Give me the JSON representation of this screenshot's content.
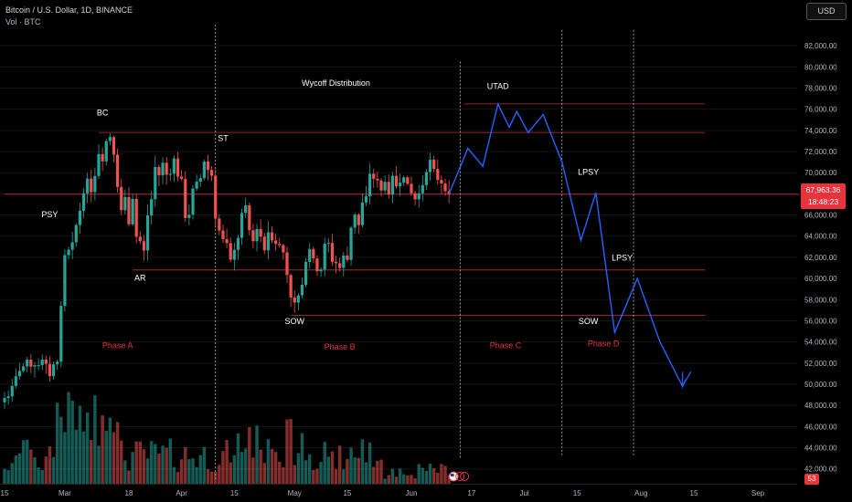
{
  "header": {
    "title": "Bitcoin / U.S. Dollar, 1D, BINANCE",
    "volume_label": "Vol · BTC",
    "currency_button": "USD"
  },
  "price_tag": {
    "price": "67,963.36",
    "countdown": "18:48:23"
  },
  "volume_tag": "53",
  "colors": {
    "up": "#26a69a",
    "down": "#ef5350",
    "projection": "#2962ff",
    "phase": "#e8323c",
    "level_line": "#c0303a"
  },
  "chart_data": {
    "type": "candlestick",
    "title": "Wycoff Distribution",
    "ylim": [
      41000,
      84000
    ],
    "y_ticks": [
      {
        "value": 42000,
        "label": "42,000.00"
      },
      {
        "value": 44000,
        "label": "44,000.00"
      },
      {
        "value": 46000,
        "label": "46,000.00"
      },
      {
        "value": 48000,
        "label": "48,000.00"
      },
      {
        "value": 50000,
        "label": "50,000.00"
      },
      {
        "value": 52000,
        "label": "52,000.00"
      },
      {
        "value": 54000,
        "label": "54,000.00"
      },
      {
        "value": 56000,
        "label": "56,000.00"
      },
      {
        "value": 58000,
        "label": "58,000.00"
      },
      {
        "value": 60000,
        "label": "60,000.00"
      },
      {
        "value": 62000,
        "label": "62,000.00"
      },
      {
        "value": 64000,
        "label": "64,000.00"
      },
      {
        "value": 66000,
        "label": "66,000.00"
      },
      {
        "value": 68000,
        "label": "68,000.00"
      },
      {
        "value": 70000,
        "label": "70,000.00"
      },
      {
        "value": 72000,
        "label": "72,000.00"
      },
      {
        "value": 74000,
        "label": "74,000.00"
      },
      {
        "value": 76000,
        "label": "76,000.00"
      },
      {
        "value": 78000,
        "label": "78,000.00"
      },
      {
        "value": 80000,
        "label": "80,000.00"
      },
      {
        "value": 82000,
        "label": "82,000.00"
      }
    ],
    "x_ticks": [
      {
        "day": 0,
        "label": "15"
      },
      {
        "day": 16,
        "label": "Mar"
      },
      {
        "day": 33,
        "label": "18"
      },
      {
        "day": 47,
        "label": "Apr"
      },
      {
        "day": 61,
        "label": "15"
      },
      {
        "day": 77,
        "label": "May"
      },
      {
        "day": 91,
        "label": "15"
      },
      {
        "day": 108,
        "label": "Jun"
      },
      {
        "day": 124,
        "label": "17"
      },
      {
        "day": 138,
        "label": "Jul"
      },
      {
        "day": 152,
        "label": "15"
      },
      {
        "day": 169,
        "label": "Aug"
      },
      {
        "day": 183,
        "label": "15"
      },
      {
        "day": 200,
        "label": "Sep"
      }
    ],
    "close_path": [
      [
        0,
        48700
      ],
      [
        2,
        49500
      ],
      [
        4,
        51500
      ],
      [
        6,
        51900
      ],
      [
        8,
        52000
      ],
      [
        10,
        52100
      ],
      [
        12,
        51000
      ],
      [
        14,
        52500
      ],
      [
        15,
        57000
      ],
      [
        16,
        61900
      ],
      [
        17,
        62500
      ],
      [
        18,
        63000
      ],
      [
        19,
        65000
      ],
      [
        20,
        66500
      ],
      [
        21,
        68500
      ],
      [
        22,
        69000
      ],
      [
        23,
        68500
      ],
      [
        24,
        70000
      ],
      [
        25,
        72000
      ],
      [
        26,
        71500
      ],
      [
        27,
        73000
      ],
      [
        28,
        73500
      ],
      [
        29,
        72000
      ],
      [
        30,
        69000
      ],
      [
        31,
        66500
      ],
      [
        32,
        67500
      ],
      [
        33,
        65500
      ],
      [
        34,
        67800
      ],
      [
        35,
        64000
      ],
      [
        36,
        63500
      ],
      [
        37,
        62500
      ],
      [
        38,
        66000
      ],
      [
        39,
        67500
      ],
      [
        40,
        70500
      ],
      [
        41,
        69800
      ],
      [
        42,
        70800
      ],
      [
        43,
        69800
      ],
      [
        44,
        70300
      ],
      [
        45,
        71200
      ],
      [
        46,
        69900
      ],
      [
        47,
        69000
      ],
      [
        48,
        66000
      ],
      [
        49,
        66200
      ],
      [
        50,
        68200
      ],
      [
        51,
        68800
      ],
      [
        52,
        69500
      ],
      [
        53,
        71200
      ],
      [
        54,
        70300
      ],
      [
        55,
        69800
      ],
      [
        56,
        66000
      ],
      [
        57,
        64500
      ],
      [
        58,
        63500
      ],
      [
        59,
        63000
      ],
      [
        60,
        61500
      ],
      [
        61,
        62500
      ],
      [
        62,
        64000
      ],
      [
        63,
        66000
      ],
      [
        64,
        66500
      ],
      [
        65,
        64500
      ],
      [
        66,
        63500
      ],
      [
        67,
        65000
      ],
      [
        68,
        64000
      ],
      [
        69,
        62800
      ],
      [
        70,
        64500
      ],
      [
        71,
        64000
      ],
      [
        72,
        63500
      ],
      [
        73,
        63000
      ],
      [
        74,
        62500
      ],
      [
        75,
        60500
      ],
      [
        76,
        58500
      ],
      [
        77,
        57500
      ],
      [
        78,
        58300
      ],
      [
        79,
        59000
      ],
      [
        80,
        62000
      ],
      [
        81,
        63000
      ],
      [
        82,
        61500
      ],
      [
        83,
        61000
      ],
      [
        84,
        61000
      ],
      [
        85,
        63000
      ],
      [
        86,
        63200
      ],
      [
        87,
        61800
      ],
      [
        88,
        61500
      ],
      [
        89,
        61000
      ],
      [
        90,
        62000
      ],
      [
        91,
        61800
      ],
      [
        92,
        65000
      ],
      [
        93,
        66200
      ],
      [
        94,
        65000
      ],
      [
        95,
        67000
      ],
      [
        96,
        67500
      ],
      [
        97,
        70000
      ],
      [
        98,
        69500
      ],
      [
        99,
        69000
      ],
      [
        100,
        68200
      ],
      [
        101,
        69500
      ],
      [
        102,
        67500
      ],
      [
        103,
        69300
      ],
      [
        104,
        68800
      ],
      [
        105,
        69500
      ],
      [
        106,
        70000
      ],
      [
        107,
        68500
      ],
      [
        108,
        68000
      ],
      [
        109,
        67500
      ],
      [
        110,
        68000
      ],
      [
        111,
        69000
      ],
      [
        112,
        70500
      ],
      [
        113,
        71000
      ],
      [
        114,
        70000
      ],
      [
        115,
        69500
      ],
      [
        116,
        69200
      ],
      [
        117,
        68700
      ],
      [
        118,
        67963
      ]
    ],
    "projection": [
      [
        118,
        68000
      ],
      [
        123,
        72300
      ],
      [
        127,
        70600
      ],
      [
        131,
        76500
      ],
      [
        134,
        74300
      ],
      [
        136,
        75800
      ],
      [
        139,
        73800
      ],
      [
        143,
        75500
      ],
      [
        148,
        71000
      ],
      [
        153,
        63600
      ],
      [
        157,
        68100
      ],
      [
        162,
        54900
      ],
      [
        168,
        60000
      ],
      [
        174,
        54000
      ],
      [
        180,
        49800
      ],
      [
        181,
        50500
      ]
    ],
    "levels": [
      {
        "value": 76500,
        "day_start": 122,
        "day_end": 186
      },
      {
        "value": 73800,
        "day_start": 25,
        "day_end": 186
      },
      {
        "value": 67963,
        "day_start": 0,
        "day_end": 211
      },
      {
        "value": 60800,
        "day_start": 34,
        "day_end": 186
      },
      {
        "value": 56500,
        "day_start": 76,
        "day_end": 186
      }
    ],
    "vlines": [
      {
        "day": 56,
        "top": 84000,
        "bottom": 41000
      },
      {
        "day": 121,
        "top": 80500,
        "bottom": 43000
      },
      {
        "day": 148,
        "top": 83500,
        "bottom": 43300
      },
      {
        "day": 167,
        "top": 83500,
        "bottom": 43300
      }
    ],
    "annotations": [
      {
        "text": "Wycoff Distribution",
        "day": 88,
        "price": 78200,
        "kind": "title"
      },
      {
        "text": "UTAD",
        "day": 131,
        "price": 77900,
        "kind": "event"
      },
      {
        "text": "BC",
        "day": 26,
        "price": 75400,
        "kind": "event"
      },
      {
        "text": "ST",
        "day": 58,
        "price": 73000,
        "kind": "event"
      },
      {
        "text": "LPSY",
        "day": 155,
        "price": 69800,
        "kind": "event"
      },
      {
        "text": "PSY",
        "day": 12,
        "price": 65800,
        "kind": "event"
      },
      {
        "text": "LPSY",
        "day": 164,
        "price": 61700,
        "kind": "event"
      },
      {
        "text": "AR",
        "day": 36,
        "price": 59800,
        "kind": "event"
      },
      {
        "text": "SOW",
        "day": 77,
        "price": 55700,
        "kind": "event"
      },
      {
        "text": "SOW",
        "day": 155,
        "price": 55700,
        "kind": "event"
      },
      {
        "text": "Phase A",
        "day": 30,
        "price": 53400,
        "kind": "phase"
      },
      {
        "text": "Phase B",
        "day": 89,
        "price": 53300,
        "kind": "phase"
      },
      {
        "text": "Phase C",
        "day": 133,
        "price": 53400,
        "kind": "phase"
      },
      {
        "text": "Phase D",
        "day": 159,
        "price": 53600,
        "kind": "phase"
      }
    ]
  }
}
